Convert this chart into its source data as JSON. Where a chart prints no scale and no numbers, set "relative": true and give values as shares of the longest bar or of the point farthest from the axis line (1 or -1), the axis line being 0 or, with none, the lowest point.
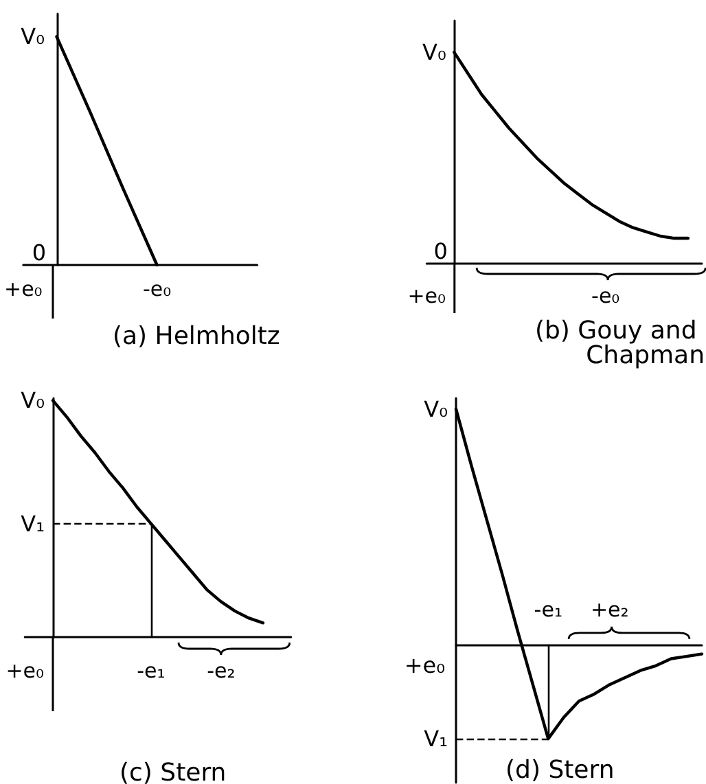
{
  "chart_data": [
    {
      "type": "line",
      "relative": true,
      "title": "(a) Helmholtz",
      "color": "#000000",
      "categories": [
        "+e₀",
        null,
        null,
        null,
        "-e₀",
        null,
        null,
        null
      ],
      "values": [
        null,
        1,
        0.67,
        0.33,
        0,
        null,
        null,
        null
      ],
      "annotations": [
        "V₀",
        "0"
      ]
    },
    {
      "type": "line",
      "relative": true,
      "title": "(b) Gouy and Chapman",
      "color": "#000000",
      "categories": [
        "+e₀",
        null,
        null,
        null,
        null,
        null,
        null,
        null,
        null,
        null,
        null,
        null,
        null,
        "-e₀",
        null,
        null,
        null,
        null,
        null,
        null,
        null
      ],
      "values": [
        null,
        null,
        1,
        0.9,
        0.8,
        0.72,
        0.64,
        0.57,
        0.5,
        0.44,
        0.38,
        0.33,
        0.28,
        0.24,
        0.2,
        0.17,
        0.15,
        0.13,
        0.12,
        0.12,
        null
      ],
      "annotations": [
        "V₀",
        "0"
      ]
    },
    {
      "type": "line",
      "relative": true,
      "title": "(c) Stern",
      "color": "#000000",
      "categories": [
        "+e₀",
        null,
        null,
        null,
        null,
        null,
        null,
        null,
        null,
        "-e₁",
        null,
        null,
        null,
        null,
        "-e₂",
        null,
        null,
        null,
        null,
        null
      ],
      "values": [
        null,
        null,
        1,
        0.93,
        0.85,
        0.78,
        0.7,
        0.63,
        0.55,
        0.48,
        0.41,
        0.34,
        0.27,
        0.2,
        0.15,
        0.11,
        0.08,
        0.06,
        null,
        null
      ],
      "ref_lines": [
        {
          "axis": "y",
          "value": 0.48,
          "label": "V₁",
          "line_style": "dashed"
        },
        {
          "axis": "x",
          "value": "-e₁"
        }
      ],
      "annotations": [
        "V₀"
      ]
    },
    {
      "type": "line",
      "relative": true,
      "title": "(d) Stern",
      "color": "#000000",
      "categories": [
        null,
        null,
        null,
        null,
        null,
        null,
        "-e₁",
        null,
        null,
        null,
        "+e₂",
        null,
        null,
        null,
        null,
        null,
        null
      ],
      "values": [
        1,
        0.76,
        0.53,
        0.3,
        0.06,
        -0.17,
        -0.4,
        -0.31,
        -0.24,
        -0.21,
        -0.17,
        -0.14,
        -0.11,
        -0.09,
        -0.06,
        -0.05,
        -0.04
      ],
      "ref_lines": [
        {
          "axis": "y",
          "value": -0.4,
          "label": "V₁",
          "line_style": "dashed"
        },
        {
          "axis": "x",
          "value": "-e₁"
        }
      ],
      "annotations": [
        "V₀",
        "+e₀"
      ]
    }
  ]
}
